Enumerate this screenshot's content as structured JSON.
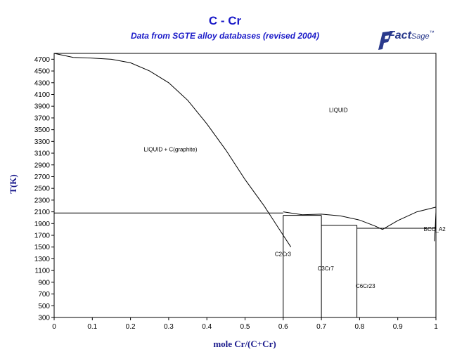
{
  "header": {
    "title": "C - Cr",
    "subtitle": "Data from SGTE alloy databases (revised 2004)"
  },
  "logo": {
    "brand_bold": "Fact",
    "brand_light": "Sage",
    "trademark": "™",
    "color": "#2a3a8c"
  },
  "colors": {
    "title": "#1a1ac8",
    "axis_title": "#1a1a8c",
    "lines": "#000000"
  },
  "chart_data": {
    "type": "line",
    "title": "C - Cr",
    "subtitle": "Data from SGTE alloy databases (revised 2004)",
    "xlabel": "mole Cr/(C+Cr)",
    "ylabel": "T(K)",
    "xlim": [
      0,
      1
    ],
    "ylim": [
      300,
      4800
    ],
    "xticks": [
      0,
      0.1,
      0.2,
      0.3,
      0.4,
      0.5,
      0.6,
      0.7,
      0.8,
      0.9,
      1
    ],
    "xtick_labels": [
      "0",
      "0.1",
      "0.2",
      "0.3",
      "0.4",
      "0.5",
      "0.6",
      "0.7",
      "0.8",
      "0.9",
      "1"
    ],
    "yticks": [
      300,
      500,
      700,
      900,
      1100,
      1300,
      1500,
      1700,
      1900,
      2100,
      2300,
      2500,
      2700,
      2900,
      3100,
      3300,
      3500,
      3700,
      3900,
      4100,
      4300,
      4500,
      4700
    ],
    "grid": false,
    "legend": "none",
    "series": [
      {
        "kind": "liquidus",
        "x": [
          0,
          0.05,
          0.1,
          0.15,
          0.2,
          0.25,
          0.3,
          0.35,
          0.4,
          0.45,
          0.5,
          0.55,
          0.6,
          0.62
        ],
        "y": [
          4800,
          4730,
          4720,
          4700,
          4640,
          4500,
          4300,
          4000,
          3600,
          3150,
          2650,
          2200,
          1700,
          1500
        ]
      },
      {
        "kind": "liquidus",
        "x": [
          0.6,
          0.65,
          0.7,
          0.75,
          0.8,
          0.84,
          0.86
        ],
        "y": [
          2100,
          2050,
          2060,
          2030,
          1960,
          1860,
          1800
        ]
      },
      {
        "kind": "liquidus",
        "x": [
          0.86,
          0.9,
          0.95,
          1.0
        ],
        "y": [
          1800,
          1950,
          2100,
          2180
        ]
      },
      {
        "kind": "tie-line",
        "x": [
          0,
          0.6
        ],
        "y": [
          2080,
          2080
        ]
      },
      {
        "kind": "tie-line",
        "x": [
          0.6,
          0.7
        ],
        "y": [
          2040,
          2040
        ]
      },
      {
        "kind": "tie-line",
        "x": [
          0.7,
          0.793
        ],
        "y": [
          1870,
          1870
        ]
      },
      {
        "kind": "tie-line",
        "x": [
          0.793,
          1.0
        ],
        "y": [
          1820,
          1820
        ]
      },
      {
        "kind": "compound",
        "x": [
          0.6,
          0.6
        ],
        "y": [
          300,
          2040
        ]
      },
      {
        "kind": "compound",
        "x": [
          0.7,
          0.7
        ],
        "y": [
          300,
          2040
        ]
      },
      {
        "kind": "compound",
        "x": [
          0.793,
          0.793
        ],
        "y": [
          300,
          1870
        ]
      },
      {
        "kind": "solvus",
        "x": [
          1.0,
          0.998,
          0.996,
          0.996
        ],
        "y": [
          2100,
          1800,
          1600,
          1600
        ]
      }
    ],
    "annotations": [
      {
        "text": "LIQUID",
        "x": 0.72,
        "y": 3800
      },
      {
        "text": "LIQUID + C(graphite)",
        "x": 0.235,
        "y": 3130
      },
      {
        "text": "C2Cr3",
        "x": 0.578,
        "y": 1350
      },
      {
        "text": "C3Cr7",
        "x": 0.69,
        "y": 1100
      },
      {
        "text": "C6Cr23",
        "x": 0.79,
        "y": 800
      },
      {
        "text": "BCC_A2",
        "x": 0.968,
        "y": 1770
      }
    ]
  }
}
